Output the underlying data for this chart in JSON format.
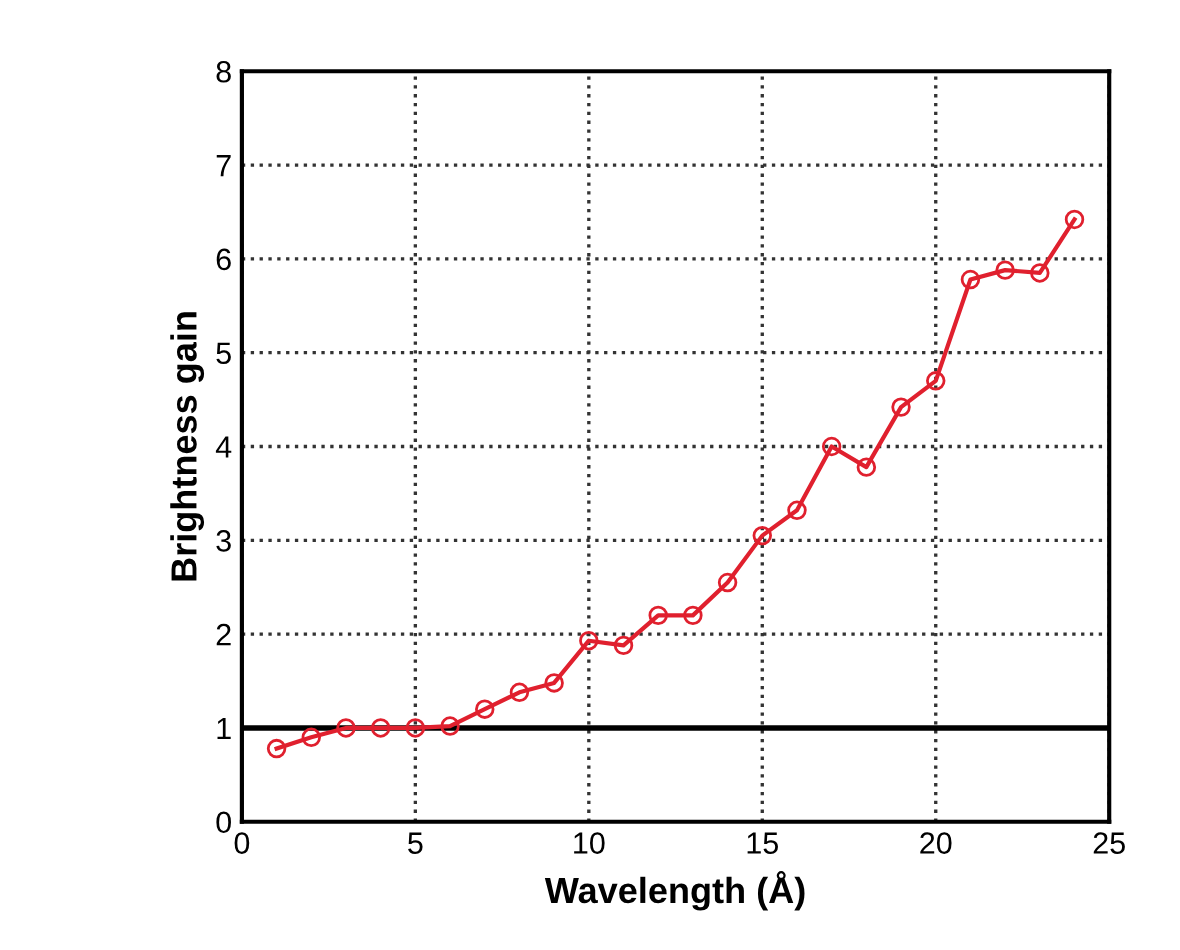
{
  "chart_data": {
    "type": "line",
    "xlabel": "Wavelength (Å)",
    "ylabel": "Brightness gain",
    "x": [
      1,
      2,
      3,
      4,
      5,
      6,
      7,
      8,
      9,
      10,
      11,
      12,
      13,
      14,
      15,
      16,
      17,
      18,
      19,
      20,
      21,
      22,
      23,
      24
    ],
    "series": [
      {
        "color": "#e0202e",
        "values": [
          0.78,
          0.9,
          1.0,
          1.0,
          1.0,
          1.02,
          1.2,
          1.38,
          1.48,
          1.93,
          1.88,
          2.2,
          2.2,
          2.55,
          3.05,
          3.32,
          4.0,
          3.78,
          4.42,
          4.7,
          5.78,
          5.88,
          5.85,
          6.42
        ]
      }
    ],
    "xlim": [
      0,
      25
    ],
    "xticks": [
      0,
      5,
      10,
      15,
      20,
      25
    ],
    "ylim": [
      0,
      8
    ],
    "yticks": [
      0,
      1,
      2,
      3,
      4,
      5,
      6,
      7,
      8
    ],
    "ref_lines": [
      {
        "axis": "y",
        "value": 1,
        "color": "#000000"
      }
    ],
    "grid": true,
    "marker": "circle",
    "line_style": "solid"
  }
}
